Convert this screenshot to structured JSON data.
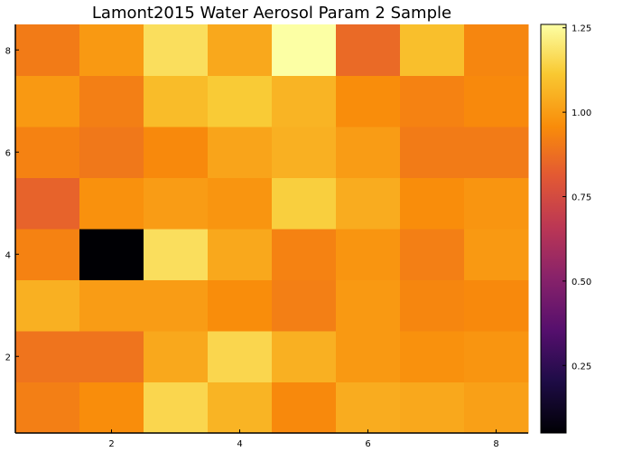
{
  "chart_data": {
    "type": "heatmap",
    "title": "Lamont2015 Water Aerosol Param 2 Sample",
    "xlabel": "",
    "ylabel": "",
    "x": [
      1,
      2,
      3,
      4,
      5,
      6,
      7,
      8
    ],
    "y": [
      1,
      2,
      3,
      4,
      5,
      6,
      7,
      8
    ],
    "xlim": [
      0.5,
      8.5
    ],
    "ylim": [
      0.5,
      8.5
    ],
    "x_ticks": [
      "2",
      "4",
      "6",
      "8"
    ],
    "y_ticks": [
      "2",
      "4",
      "6",
      "8"
    ],
    "colormap": "inferno",
    "clim": [
      0.05,
      1.26
    ],
    "colorbar_ticks": [
      "0.25",
      "0.50",
      "0.75",
      "1.00",
      "1.25"
    ],
    "values": [
      [
        0.92,
        0.96,
        1.15,
        1.06,
        0.95,
        1.04,
        1.03,
        1.01
      ],
      [
        0.89,
        0.89,
        1.03,
        1.15,
        1.05,
        0.99,
        0.97,
        0.98
      ],
      [
        1.05,
        1.0,
        1.0,
        0.96,
        0.92,
        0.99,
        0.94,
        0.95
      ],
      [
        0.93,
        0.05,
        1.17,
        1.03,
        0.93,
        0.98,
        0.92,
        0.99
      ],
      [
        0.84,
        0.97,
        1.0,
        0.98,
        1.13,
        1.04,
        0.96,
        0.98
      ],
      [
        0.93,
        0.9,
        0.95,
        1.02,
        1.05,
        1.0,
        0.91,
        0.91
      ],
      [
        0.99,
        0.92,
        1.08,
        1.12,
        1.06,
        0.96,
        0.93,
        0.95
      ],
      [
        0.91,
        0.99,
        1.17,
        1.03,
        1.26,
        0.86,
        1.09,
        0.94
      ]
    ]
  }
}
